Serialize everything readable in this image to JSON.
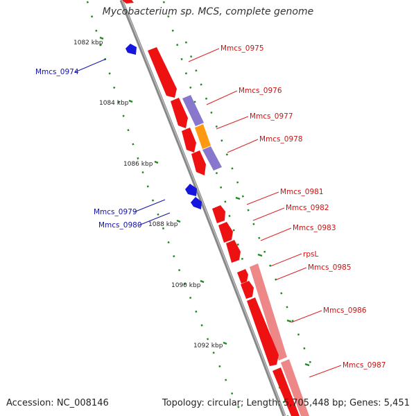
{
  "title": "Mycobacterium sp. MCS, complete genome",
  "footer": {
    "accession": "Accession: NC_008146",
    "topology": "Topology: circular; Length: 5,705,448 bp; Genes: 5,451"
  },
  "colors": {
    "forward_gene": "#ee1111",
    "reverse_gene": "#1515dd",
    "cds_purple": "#8877cc",
    "cds_orange": "#ff9911",
    "cds_pink": "#ee8888",
    "backbone": "#888888",
    "tick_green": "#228822",
    "forward_label": "#cc1111",
    "reverse_label": "#1111aa"
  },
  "kbp_ticks": [
    "1082 kbp",
    "1084 kbp",
    "1086 kbp",
    "1088 kbp",
    "1090 kbp",
    "1092 kbp"
  ],
  "genes_forward": [
    "Mmcs_0975",
    "Mmcs_0976",
    "Mmcs_0977",
    "Mmcs_0978",
    "Mmcs_0981",
    "Mmcs_0982",
    "Mmcs_0983",
    "rpsL",
    "Mmcs_0985",
    "Mmcs_0986",
    "Mmcs_0987"
  ],
  "genes_reverse": [
    "Mmcs_0974",
    "Mmcs_0979",
    "Mmcs_0980"
  ]
}
